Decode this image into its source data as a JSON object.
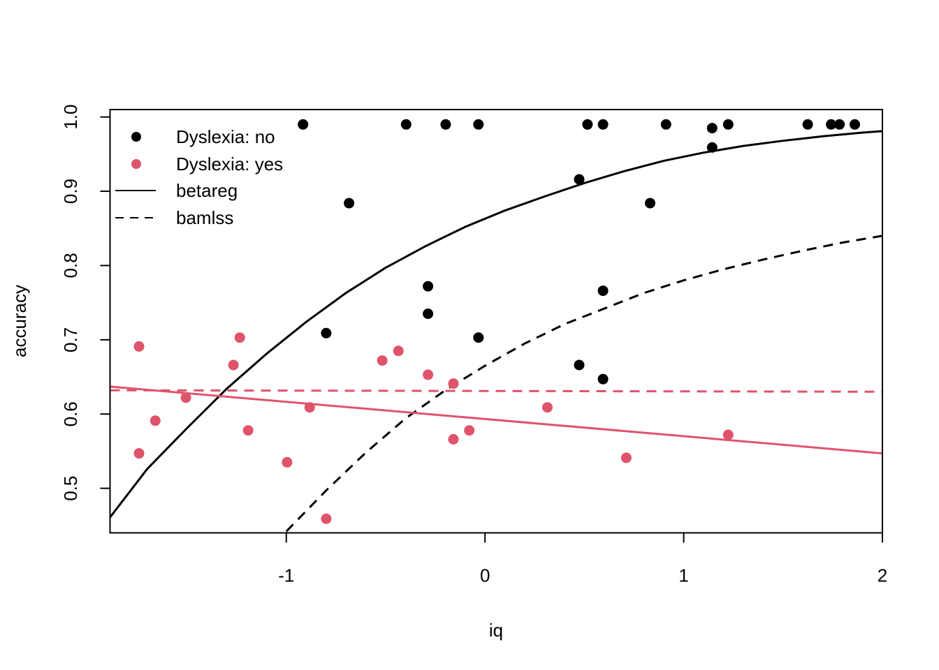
{
  "chart_data": {
    "type": "scatter",
    "title": "",
    "xlabel": "iq",
    "ylabel": "accuracy",
    "xlim": [
      -1.887,
      2.0
    ],
    "ylim": [
      0.44,
      1.01
    ],
    "xticks": [
      -1,
      0,
      1,
      2
    ],
    "yticks": [
      0.5,
      0.6,
      0.7,
      0.8,
      0.9,
      1.0
    ],
    "xtick_labels": [
      "-1",
      "0",
      "1",
      "2"
    ],
    "ytick_labels": [
      "0.5",
      "0.6",
      "0.7",
      "0.8",
      "0.9",
      "1.0"
    ],
    "grid": false,
    "legend_position": "top-left",
    "legend": [
      {
        "label": "Dyslexia: no",
        "kind": "point",
        "color": "#000000"
      },
      {
        "label": "Dyslexia: yes",
        "kind": "point",
        "color": "#DF536B"
      },
      {
        "label": "betareg",
        "kind": "line",
        "dash": "solid",
        "color": "#000000"
      },
      {
        "label": "bamlss",
        "kind": "line",
        "dash": "dashed",
        "color": "#000000"
      }
    ],
    "points": [
      {
        "group": "Dyslexia: no",
        "color": "#000000",
        "x": [
          -0.916,
          -0.684,
          -0.397,
          -0.198,
          -0.033,
          0.516,
          0.594,
          0.911,
          1.143,
          1.224,
          1.624,
          1.742,
          1.784,
          1.861,
          1.143,
          0.474,
          0.831,
          -0.287,
          -0.287,
          -0.799,
          -0.033,
          0.594,
          0.474,
          0.594
        ],
        "y": [
          0.99,
          0.884,
          0.99,
          0.99,
          0.99,
          0.99,
          0.99,
          0.99,
          0.985,
          0.99,
          0.99,
          0.99,
          0.99,
          0.99,
          0.959,
          0.916,
          0.884,
          0.772,
          0.735,
          0.709,
          0.703,
          0.766,
          0.666,
          0.647
        ]
      },
      {
        "group": "Dyslexia: yes",
        "color": "#DF536B",
        "x": [
          -1.741,
          -1.659,
          -1.505,
          -1.741,
          -1.266,
          -1.234,
          -1.192,
          -0.996,
          -0.882,
          -0.799,
          -0.517,
          -0.436,
          -0.287,
          -0.159,
          -0.159,
          -0.079,
          0.314,
          0.711,
          1.224
        ],
        "y": [
          0.691,
          0.591,
          0.622,
          0.547,
          0.666,
          0.703,
          0.578,
          0.535,
          0.609,
          0.459,
          0.672,
          0.685,
          0.653,
          0.641,
          0.566,
          0.578,
          0.609,
          0.541,
          0.572
        ]
      }
    ],
    "fitted_lines": [
      {
        "model": "betareg",
        "group": "Dyslexia: no",
        "color": "#000000",
        "dash": "solid",
        "x": [
          -1.887,
          -1.7,
          -1.5,
          -1.3,
          -1.1,
          -0.9,
          -0.7,
          -0.5,
          -0.3,
          -0.1,
          0.1,
          0.3,
          0.5,
          0.7,
          0.9,
          1.1,
          1.3,
          1.5,
          1.7,
          1.9,
          2.0
        ],
        "y": [
          0.461,
          0.526,
          0.581,
          0.634,
          0.681,
          0.724,
          0.763,
          0.797,
          0.826,
          0.852,
          0.874,
          0.893,
          0.911,
          0.927,
          0.941,
          0.952,
          0.961,
          0.968,
          0.974,
          0.979,
          0.981
        ]
      },
      {
        "model": "bamlss",
        "group": "Dyslexia: no",
        "color": "#000000",
        "dash": "dashed",
        "x": [
          -1.0,
          -0.8,
          -0.6,
          -0.4,
          -0.2,
          0.0,
          0.2,
          0.4,
          0.6,
          0.8,
          1.0,
          1.2,
          1.4,
          1.6,
          1.8,
          2.0
        ],
        "y": [
          0.442,
          0.497,
          0.548,
          0.594,
          0.632,
          0.665,
          0.695,
          0.721,
          0.742,
          0.763,
          0.78,
          0.795,
          0.808,
          0.82,
          0.831,
          0.84
        ]
      },
      {
        "model": "betareg",
        "group": "Dyslexia: yes",
        "color": "#DF536B",
        "dash": "solid",
        "x": [
          -1.887,
          2.0
        ],
        "y": [
          0.637,
          0.547
        ]
      },
      {
        "model": "bamlss",
        "group": "Dyslexia: yes",
        "color": "#DF536B",
        "dash": "dashed",
        "x": [
          -1.887,
          2.0
        ],
        "y": [
          0.632,
          0.63
        ]
      }
    ]
  }
}
